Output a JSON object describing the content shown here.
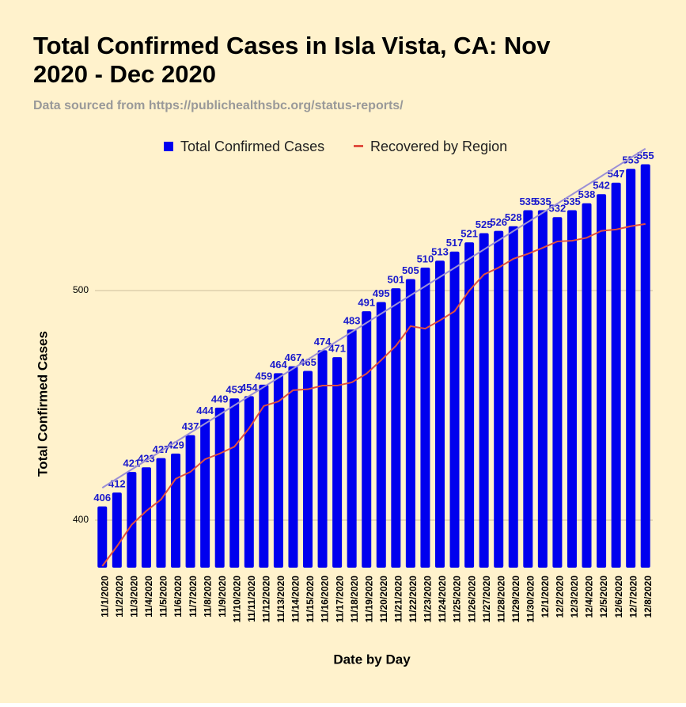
{
  "chart_data": {
    "type": "bar",
    "title": "Total Confirmed Cases in Isla Vista, CA: Nov 2020 - Dec 2020",
    "subtitle": "Data sourced from https://publichealthsbc.org/status-reports/",
    "x_label": "Date by Day",
    "y_label": "Total Confirmed Cases",
    "categories": [
      "11/1/2020",
      "11/2/2020",
      "11/3/2020",
      "11/4/2020",
      "11/5/2020",
      "11/6/2020",
      "11/7/2020",
      "11/8/2020",
      "11/9/2020",
      "11/10/2020",
      "11/11/2020",
      "11/12/2020",
      "11/13/2020",
      "11/14/2020",
      "11/15/2020",
      "11/16/2020",
      "11/17/2020",
      "11/18/2020",
      "11/19/2020",
      "11/20/2020",
      "11/21/2020",
      "11/22/2020",
      "11/23/2020",
      "11/24/2020",
      "11/25/2020",
      "11/26/2020",
      "11/27/2020",
      "11/28/2020",
      "11/29/2020",
      "11/30/2020",
      "12/1/2020",
      "12/2/2020",
      "12/3/2020",
      "12/4/2020",
      "12/5/2020",
      "12/6/2020",
      "12/7/2020",
      "12/8/2020"
    ],
    "series": [
      {
        "name": "Total Confirmed Cases",
        "color": "#0000ee",
        "label_color": "#1a1acc",
        "values": [
          406,
          412,
          421,
          423,
          427,
          429,
          437,
          444,
          449,
          453,
          454,
          459,
          464,
          467,
          465,
          474,
          471,
          483,
          491,
          495,
          501,
          505,
          510,
          513,
          517,
          521,
          525,
          526,
          528,
          535,
          535,
          532,
          535,
          538,
          542,
          547,
          553,
          555
        ]
      },
      {
        "name": "Recovered by Region",
        "color": "#e05040",
        "type": "line",
        "values": [
          380,
          388.6,
          398,
          404,
          409,
          418,
          421,
          426.5,
          429,
          432,
          440,
          449.7,
          451.7,
          456.6,
          457,
          458.6,
          458.6,
          460,
          463.8,
          469.7,
          475.9,
          484.5,
          483.4,
          487,
          491,
          500,
          507,
          510,
          513.8,
          516,
          518.6,
          521.4,
          521.7,
          523,
          526,
          526.6,
          528,
          529
        ]
      }
    ],
    "trendline": true,
    "trendline_color": "#9b8fd6",
    "ylim": [
      379.3,
      560
    ],
    "yticks": [
      400,
      500
    ],
    "grid": true,
    "legend": "top",
    "background": "#fff2cc"
  }
}
